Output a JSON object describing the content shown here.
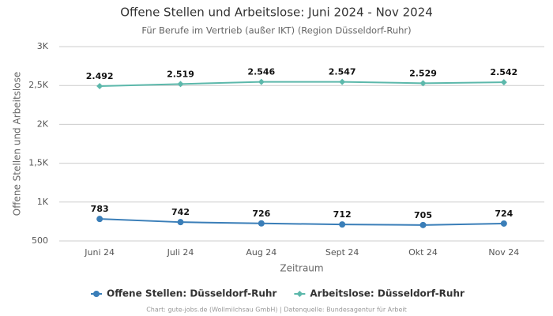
{
  "chart_data": {
    "type": "line",
    "title": "Offene Stellen und Arbeitslose: Juni 2024 - Nov 2024",
    "subtitle": "Für Berufe im Vertrieb (außer IKT) (Region Düsseldorf-Ruhr)",
    "x_label": "Zeitraum",
    "y_label": "Offene Stellen und Arbeitslose",
    "source": "Chart: gute-jobs.de (Wollmilchsau GmbH) | Datenquelle: Bundesagentur für Arbeit",
    "categories": [
      "Juni 24",
      "Juli 24",
      "Aug 24",
      "Sept 24",
      "Okt 24",
      "Nov 24"
    ],
    "series": [
      {
        "name": "Offene Stellen: Düsseldorf-Ruhr",
        "color": "#3a7eb8",
        "marker": "circle",
        "values": [
          783,
          742,
          726,
          712,
          705,
          724
        ]
      },
      {
        "name": "Arbeitslose: Düsseldorf-Ruhr",
        "color": "#5cb8ab",
        "marker": "diamond",
        "values": [
          2492,
          2519,
          2546,
          2547,
          2529,
          2542
        ],
        "value_labels": [
          "2.492",
          "2.519",
          "2.546",
          "2.547",
          "2.529",
          "2.542"
        ]
      }
    ],
    "ylim": [
      500,
      3000
    ],
    "yticks": [
      500,
      {
        "value": 1000,
        "label": "1K"
      },
      {
        "value": 1500,
        "label": "1,5K"
      },
      {
        "value": 2000,
        "label": "2K"
      },
      {
        "value": 2500,
        "label": "2,5K"
      },
      {
        "value": 3000,
        "label": "3K"
      }
    ],
    "grid": true
  }
}
